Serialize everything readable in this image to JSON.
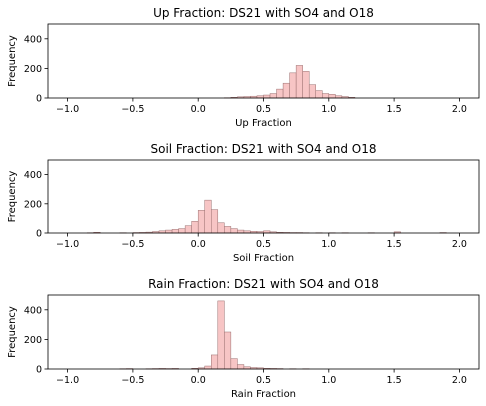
{
  "chart_data": [
    {
      "type": "bar",
      "title": "Up Fraction: DS21 with SO4 and O18",
      "xlabel": "Up Fraction",
      "ylabel": "Frequency",
      "xlim": [
        -1.15,
        2.15
      ],
      "ylim": [
        0,
        500
      ],
      "xticks": [
        "−1.0",
        "−0.5",
        "0.0",
        "0.5",
        "1.0",
        "1.5",
        "2.0"
      ],
      "xtick_values": [
        -1.0,
        -0.5,
        0.0,
        0.5,
        1.0,
        1.5,
        2.0
      ],
      "yticks": [
        "0",
        "200",
        "400"
      ],
      "ytick_values": [
        0,
        200,
        400
      ],
      "bar_color": "#f7c5c5",
      "edge_color": "#9a6f6f",
      "bins": [
        {
          "x0": 0.2,
          "x1": 0.25,
          "value": 2
        },
        {
          "x0": 0.25,
          "x1": 0.3,
          "value": 5
        },
        {
          "x0": 0.3,
          "x1": 0.35,
          "value": 8
        },
        {
          "x0": 0.35,
          "x1": 0.4,
          "value": 10
        },
        {
          "x0": 0.4,
          "x1": 0.45,
          "value": 12
        },
        {
          "x0": 0.45,
          "x1": 0.5,
          "value": 15
        },
        {
          "x0": 0.5,
          "x1": 0.55,
          "value": 20
        },
        {
          "x0": 0.55,
          "x1": 0.6,
          "value": 30
        },
        {
          "x0": 0.6,
          "x1": 0.65,
          "value": 60
        },
        {
          "x0": 0.65,
          "x1": 0.7,
          "value": 100
        },
        {
          "x0": 0.7,
          "x1": 0.75,
          "value": 170
        },
        {
          "x0": 0.75,
          "x1": 0.8,
          "value": 220
        },
        {
          "x0": 0.8,
          "x1": 0.85,
          "value": 180
        },
        {
          "x0": 0.85,
          "x1": 0.9,
          "value": 90
        },
        {
          "x0": 0.9,
          "x1": 0.95,
          "value": 50
        },
        {
          "x0": 0.95,
          "x1": 1.0,
          "value": 30
        },
        {
          "x0": 1.0,
          "x1": 1.05,
          "value": 25
        },
        {
          "x0": 1.05,
          "x1": 1.1,
          "value": 15
        },
        {
          "x0": 1.1,
          "x1": 1.15,
          "value": 10
        },
        {
          "x0": 1.15,
          "x1": 1.2,
          "value": 5
        }
      ]
    },
    {
      "type": "bar",
      "title": "Soil Fraction: DS21 with SO4 and O18",
      "xlabel": "Soil Fraction",
      "ylabel": "Frequency",
      "xlim": [
        -1.15,
        2.15
      ],
      "ylim": [
        0,
        500
      ],
      "xticks": [
        "−1.0",
        "−0.5",
        "0.0",
        "0.5",
        "1.0",
        "1.5",
        "2.0"
      ],
      "xtick_values": [
        -1.0,
        -0.5,
        0.0,
        0.5,
        1.0,
        1.5,
        2.0
      ],
      "yticks": [
        "0",
        "200",
        "400"
      ],
      "ytick_values": [
        0,
        200,
        400
      ],
      "bar_color": "#f7c5c5",
      "edge_color": "#9a6f6f",
      "bins": [
        {
          "x0": -0.85,
          "x1": -0.8,
          "value": 2
        },
        {
          "x0": -0.8,
          "x1": -0.75,
          "value": 5
        },
        {
          "x0": -0.6,
          "x1": -0.55,
          "value": 2
        },
        {
          "x0": -0.5,
          "x1": -0.45,
          "value": 3
        },
        {
          "x0": -0.45,
          "x1": -0.4,
          "value": 4
        },
        {
          "x0": -0.4,
          "x1": -0.35,
          "value": 6
        },
        {
          "x0": -0.35,
          "x1": -0.3,
          "value": 10
        },
        {
          "x0": -0.3,
          "x1": -0.25,
          "value": 15
        },
        {
          "x0": -0.25,
          "x1": -0.2,
          "value": 20
        },
        {
          "x0": -0.2,
          "x1": -0.15,
          "value": 25
        },
        {
          "x0": -0.15,
          "x1": -0.1,
          "value": 30
        },
        {
          "x0": -0.1,
          "x1": -0.05,
          "value": 50
        },
        {
          "x0": -0.05,
          "x1": 0.0,
          "value": 80
        },
        {
          "x0": 0.0,
          "x1": 0.05,
          "value": 155
        },
        {
          "x0": 0.05,
          "x1": 0.1,
          "value": 225
        },
        {
          "x0": 0.1,
          "x1": 0.15,
          "value": 160
        },
        {
          "x0": 0.15,
          "x1": 0.2,
          "value": 70
        },
        {
          "x0": 0.2,
          "x1": 0.25,
          "value": 45
        },
        {
          "x0": 0.25,
          "x1": 0.3,
          "value": 30
        },
        {
          "x0": 0.3,
          "x1": 0.35,
          "value": 20
        },
        {
          "x0": 0.35,
          "x1": 0.4,
          "value": 15
        },
        {
          "x0": 0.4,
          "x1": 0.45,
          "value": 12
        },
        {
          "x0": 0.45,
          "x1": 0.5,
          "value": 10
        },
        {
          "x0": 0.5,
          "x1": 0.55,
          "value": 15
        },
        {
          "x0": 0.55,
          "x1": 0.6,
          "value": 8
        },
        {
          "x0": 0.6,
          "x1": 0.65,
          "value": 5
        },
        {
          "x0": 0.65,
          "x1": 0.7,
          "value": 4
        },
        {
          "x0": 0.7,
          "x1": 0.75,
          "value": 3
        },
        {
          "x0": 0.75,
          "x1": 0.8,
          "value": 3
        },
        {
          "x0": 0.8,
          "x1": 0.85,
          "value": 2
        },
        {
          "x0": 0.9,
          "x1": 0.95,
          "value": 2
        },
        {
          "x0": 1.0,
          "x1": 1.05,
          "value": 2
        },
        {
          "x0": 1.1,
          "x1": 1.15,
          "value": 2
        },
        {
          "x0": 1.3,
          "x1": 1.35,
          "value": 2
        },
        {
          "x0": 1.5,
          "x1": 1.55,
          "value": 8
        },
        {
          "x0": 1.85,
          "x1": 1.9,
          "value": 3
        }
      ]
    },
    {
      "type": "bar",
      "title": "Rain Fraction: DS21 with SO4 and O18",
      "xlabel": "Rain Fraction",
      "ylabel": "Frequency",
      "xlim": [
        -1.15,
        2.15
      ],
      "ylim": [
        0,
        500
      ],
      "xticks": [
        "−1.0",
        "−0.5",
        "0.0",
        "0.5",
        "1.0",
        "1.5",
        "2.0"
      ],
      "xtick_values": [
        -1.0,
        -0.5,
        0.0,
        0.5,
        1.0,
        1.5,
        2.0
      ],
      "yticks": [
        "0",
        "200",
        "400"
      ],
      "ytick_values": [
        0,
        200,
        400
      ],
      "bar_color": "#f7c5c5",
      "edge_color": "#9a6f6f",
      "bins": [
        {
          "x0": -0.6,
          "x1": -0.55,
          "value": 2
        },
        {
          "x0": -0.55,
          "x1": -0.5,
          "value": 3
        },
        {
          "x0": -0.4,
          "x1": -0.35,
          "value": 2
        },
        {
          "x0": -0.35,
          "x1": -0.3,
          "value": 3
        },
        {
          "x0": -0.3,
          "x1": -0.25,
          "value": 4
        },
        {
          "x0": -0.25,
          "x1": -0.2,
          "value": 3
        },
        {
          "x0": -0.2,
          "x1": -0.15,
          "value": 4
        },
        {
          "x0": -0.05,
          "x1": 0.0,
          "value": 5
        },
        {
          "x0": 0.0,
          "x1": 0.05,
          "value": 8
        },
        {
          "x0": 0.05,
          "x1": 0.1,
          "value": 20
        },
        {
          "x0": 0.1,
          "x1": 0.15,
          "value": 95
        },
        {
          "x0": 0.15,
          "x1": 0.2,
          "value": 460
        },
        {
          "x0": 0.2,
          "x1": 0.25,
          "value": 250
        },
        {
          "x0": 0.25,
          "x1": 0.3,
          "value": 70
        },
        {
          "x0": 0.3,
          "x1": 0.35,
          "value": 30
        },
        {
          "x0": 0.35,
          "x1": 0.4,
          "value": 15
        },
        {
          "x0": 0.4,
          "x1": 0.45,
          "value": 10
        },
        {
          "x0": 0.45,
          "x1": 0.5,
          "value": 8
        },
        {
          "x0": 0.5,
          "x1": 0.55,
          "value": 5
        },
        {
          "x0": 0.55,
          "x1": 0.6,
          "value": 4
        },
        {
          "x0": 0.6,
          "x1": 0.65,
          "value": 3
        },
        {
          "x0": 0.7,
          "x1": 0.75,
          "value": 2
        },
        {
          "x0": 0.8,
          "x1": 0.85,
          "value": 2
        }
      ]
    }
  ]
}
